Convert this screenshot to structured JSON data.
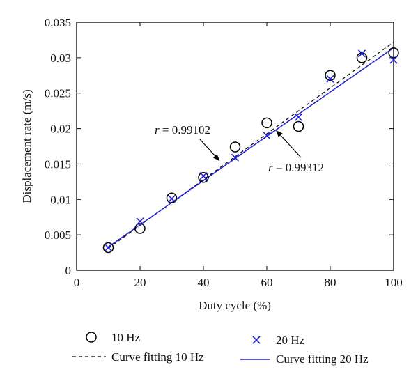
{
  "chart_data": {
    "type": "scatter",
    "xlabel": "Duty cycle (%)",
    "ylabel": "Displacement rate (m/s)",
    "xlim": [
      0,
      100
    ],
    "ylim": [
      0,
      0.035
    ],
    "xticks": [
      0,
      20,
      40,
      60,
      80,
      100
    ],
    "xtick_labels": [
      "0",
      "20",
      "40",
      "60",
      "80",
      "100"
    ],
    "yticks": [
      0,
      0.005,
      0.01,
      0.015,
      0.02,
      0.025,
      0.03,
      0.035
    ],
    "ytick_labels": [
      "0",
      "0.005",
      "0.01",
      "0.015",
      "0.02",
      "0.025",
      "0.03",
      "0.035"
    ],
    "grid": false,
    "legend_position": "below",
    "series": [
      {
        "name": "10 Hz",
        "marker": "circle",
        "color": "#000000",
        "x": [
          10,
          20,
          30,
          40,
          50,
          60,
          70,
          80,
          90,
          100
        ],
        "y": [
          0.0032,
          0.0059,
          0.0102,
          0.0131,
          0.0174,
          0.0208,
          0.0203,
          0.0275,
          0.03,
          0.0307
        ]
      },
      {
        "name": "20 Hz",
        "marker": "x",
        "color": "#1f1fd6",
        "x": [
          10,
          20,
          30,
          40,
          50,
          60,
          70,
          80,
          90,
          100
        ],
        "y": [
          0.0032,
          0.0069,
          0.0101,
          0.0133,
          0.0159,
          0.019,
          0.0216,
          0.027,
          0.0306,
          0.0297
        ]
      }
    ],
    "fits": [
      {
        "name": "Curve fitting 10 Hz",
        "style": "dashed",
        "color": "#000000",
        "x": [
          10,
          100
        ],
        "y": [
          0.0031,
          0.0322
        ]
      },
      {
        "name": "Curve fitting 20 Hz",
        "style": "solid",
        "color": "#1f1fd6",
        "x": [
          10,
          100
        ],
        "y": [
          0.0033,
          0.0314
        ]
      }
    ],
    "annotations": [
      {
        "prefix": "r",
        "text": " = 0.99102",
        "target": [
          45,
          0.0155
        ]
      },
      {
        "prefix": "r",
        "text": " = 0.99312",
        "target": [
          63,
          0.0197
        ]
      }
    ]
  }
}
